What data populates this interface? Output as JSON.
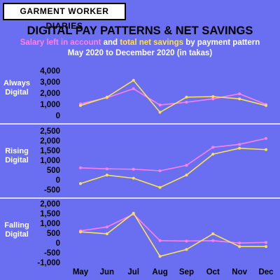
{
  "brand": "GARMENT WORKER DIARIES",
  "title": "DIGITAL PAY PATTERNS & NET SAVINGS",
  "subtitle": [
    {
      "text": "Salary left in account",
      "color": "#ff80f4"
    },
    {
      "text": " and ",
      "color": "#ffffff"
    },
    {
      "text": "total net savings",
      "color": "#ffe14d"
    },
    {
      "text": " by payment pattern",
      "color": "#ffffff"
    }
  ],
  "subtitle2": "May 2020 to December 2020 (in takas)",
  "chart_data": [
    {
      "type": "line",
      "label": "Always Digital",
      "ylim": [
        0,
        4000
      ],
      "yticks": [
        0,
        {
          "value": 1000,
          "label": "1,000"
        },
        {
          "value": 2000,
          "label": "2,000"
        },
        {
          "value": 3000,
          "label": "3,000"
        },
        {
          "value": 4000,
          "label": "4,000"
        }
      ],
      "series": [
        {
          "color": "#ff80f4",
          "values": [
            1100,
            1650,
            2450,
            1000,
            1250,
            1550,
            2000,
            1050
          ]
        },
        {
          "color": "#ffe14d",
          "values": [
            950,
            1700,
            3200,
            350,
            1700,
            1750,
            1550,
            950
          ]
        }
      ]
    },
    {
      "type": "line",
      "label": "Rising Digital",
      "ylim": [
        -500,
        2500
      ],
      "yticks": [
        -500,
        0,
        500,
        {
          "value": 1000,
          "label": "1,000"
        },
        {
          "value": 1500,
          "label": "1,500"
        },
        {
          "value": 2000,
          "label": "2,000"
        },
        {
          "value": 2500,
          "label": "2,500"
        }
      ],
      "series": [
        {
          "color": "#ff80f4",
          "values": [
            650,
            600,
            580,
            500,
            780,
            1700,
            1850,
            2150
          ]
        },
        {
          "color": "#ffe14d",
          "values": [
            -150,
            280,
            120,
            -350,
            280,
            1350,
            1650,
            1580
          ]
        }
      ]
    },
    {
      "type": "line",
      "label": "Falling Digital",
      "categories": [
        "May",
        "Jun",
        "Jul",
        "Aug",
        "Sep",
        "Oct",
        "Nov",
        "Dec"
      ],
      "ylim": [
        -1000,
        2000
      ],
      "yticks": [
        {
          "value": -1000,
          "label": "-1,000"
        },
        -500,
        0,
        500,
        {
          "value": 1000,
          "label": "1,000"
        },
        {
          "value": 1500,
          "label": "1,500"
        },
        {
          "value": 2000,
          "label": "2,000"
        }
      ],
      "series": [
        {
          "color": "#ff80f4",
          "values": [
            650,
            850,
            1500,
            150,
            130,
            150,
            30,
            60
          ]
        },
        {
          "color": "#ffe14d",
          "values": [
            600,
            500,
            1550,
            -650,
            -300,
            500,
            -150,
            -150
          ]
        }
      ]
    }
  ]
}
